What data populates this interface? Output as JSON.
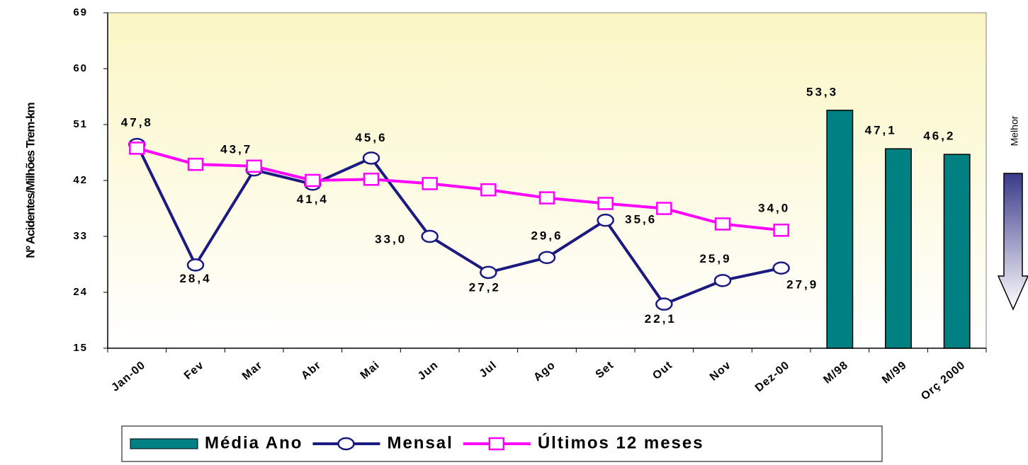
{
  "chart_data": {
    "type": "bar-line",
    "y_label": "Nº Acidentes/Milhões Trem-km",
    "annotation": "Melhor",
    "categories": [
      "Jan-00",
      "Fev",
      "Mar",
      "Abr",
      "Mai",
      "Jun",
      "Jul",
      "Ago",
      "Set",
      "Out",
      "Nov",
      "Dez-00",
      "M/98",
      "M/99",
      "Orç 2000"
    ],
    "ylim": [
      15,
      69
    ],
    "yticks": [
      15,
      24,
      33,
      42,
      51,
      60,
      69
    ],
    "series": [
      {
        "name": "Média Ano",
        "type": "bar",
        "color": "#008080",
        "values": [
          null,
          null,
          null,
          null,
          null,
          null,
          null,
          null,
          null,
          null,
          null,
          null,
          53.3,
          47.1,
          46.2
        ],
        "value_labels": [
          null,
          null,
          null,
          null,
          null,
          null,
          null,
          null,
          null,
          null,
          null,
          null,
          "53,3",
          "47,1",
          "46,2"
        ]
      },
      {
        "name": "Mensal",
        "type": "line",
        "color": "#1a1a80",
        "marker": "circle",
        "values": [
          47.8,
          28.4,
          43.7,
          41.4,
          45.6,
          33.0,
          27.2,
          29.6,
          35.6,
          22.1,
          25.9,
          27.9,
          null,
          null,
          null
        ],
        "value_labels": [
          "47,8",
          "28,4",
          "43,7",
          "41,4",
          "45,6",
          "33,0",
          "27,2",
          "29,6",
          "35,6",
          "22,1",
          "25,9",
          "27,9",
          null,
          null,
          null
        ]
      },
      {
        "name": "Últimos 12 meses",
        "type": "line",
        "color": "#ff00ff",
        "marker": "square",
        "values": [
          47.2,
          44.6,
          44.3,
          42.0,
          42.2,
          41.5,
          40.5,
          39.2,
          38.3,
          37.5,
          35.0,
          34.0,
          null,
          null,
          null
        ],
        "value_labels": [
          null,
          null,
          null,
          null,
          null,
          null,
          null,
          null,
          null,
          null,
          null,
          "34,0",
          null,
          null,
          null
        ]
      }
    ]
  }
}
